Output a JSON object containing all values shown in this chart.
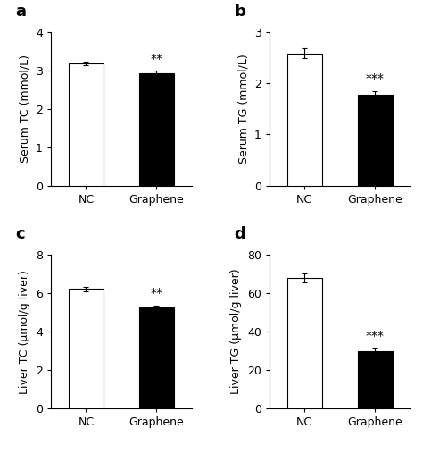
{
  "panels": [
    {
      "label": "a",
      "ylabel": "Serum TC (mmol/L)",
      "categories": [
        "NC",
        "Graphene"
      ],
      "values": [
        3.18,
        2.93
      ],
      "errors": [
        0.05,
        0.05
      ],
      "colors": [
        "white",
        "black"
      ],
      "ylim": [
        0,
        4
      ],
      "yticks": [
        0,
        1,
        2,
        3,
        4
      ],
      "significance": "**",
      "sig_on_bar": 1
    },
    {
      "label": "b",
      "ylabel": "Serum TG (mmol/L)",
      "categories": [
        "NC",
        "Graphene"
      ],
      "values": [
        2.58,
        1.78
      ],
      "errors": [
        0.1,
        0.07
      ],
      "colors": [
        "white",
        "black"
      ],
      "ylim": [
        0,
        3
      ],
      "yticks": [
        0,
        1,
        2,
        3
      ],
      "significance": "***",
      "sig_on_bar": 1
    },
    {
      "label": "c",
      "ylabel": "Liver TC (μmol/g liver)",
      "categories": [
        "NC",
        "Graphene"
      ],
      "values": [
        6.22,
        5.28
      ],
      "errors": [
        0.12,
        0.08
      ],
      "colors": [
        "white",
        "black"
      ],
      "ylim": [
        0,
        8
      ],
      "yticks": [
        0,
        2,
        4,
        6,
        8
      ],
      "significance": "**",
      "sig_on_bar": 1
    },
    {
      "label": "d",
      "ylabel": "Liver TG (μmol/g liver)",
      "categories": [
        "NC",
        "Graphene"
      ],
      "values": [
        68.0,
        30.0
      ],
      "errors": [
        2.5,
        1.5
      ],
      "colors": [
        "white",
        "black"
      ],
      "ylim": [
        0,
        80
      ],
      "yticks": [
        0,
        20,
        40,
        60,
        80
      ],
      "significance": "***",
      "sig_on_bar": 1
    }
  ],
  "bar_width": 0.5,
  "tick_fontsize": 9,
  "ylabel_fontsize": 9,
  "sig_fontsize": 10,
  "panel_label_fontsize": 13,
  "background_color": "#ffffff",
  "edge_color": "black"
}
